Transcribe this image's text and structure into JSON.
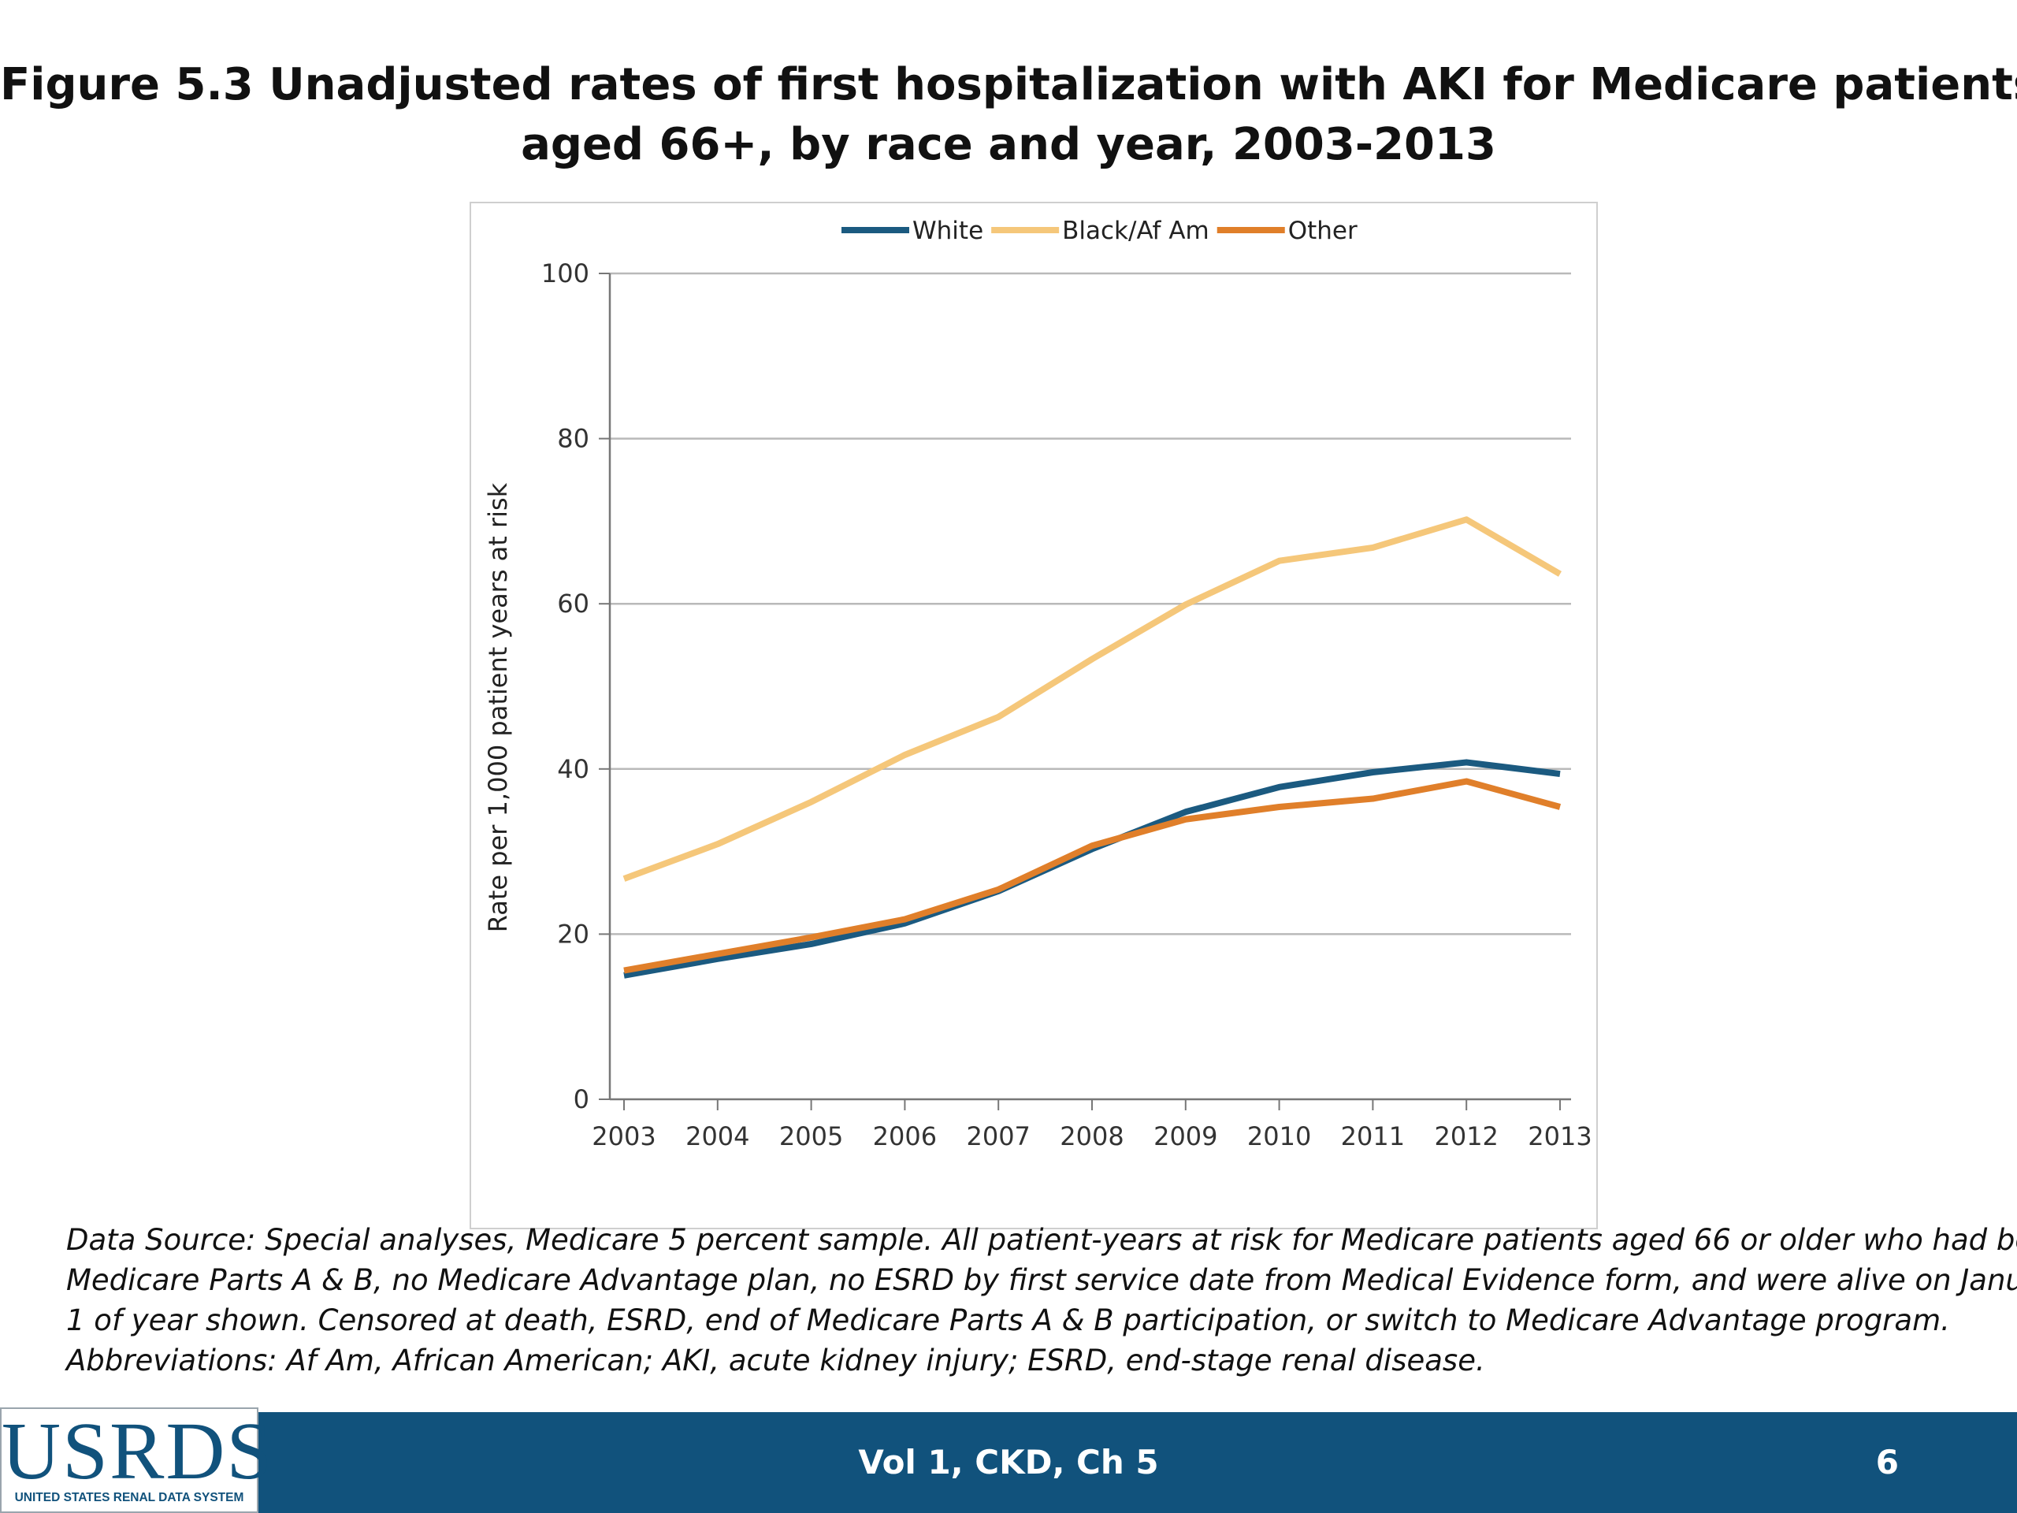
{
  "slide": {
    "title_line1": "Figure 5.3  Unadjusted rates of first hospitalization with AKI for Medicare patients",
    "title_line2": "aged 66+, by race and year, 2003-2013",
    "footnote_lines": [
      "Data Source: Special analyses, Medicare 5 percent sample. All patient-years at risk for Medicare patients aged 66 or older who had both",
      "Medicare Parts A & B, no Medicare Advantage plan, no ESRD by first service date from Medical Evidence form, and were alive on January",
      "1 of year shown. Censored at death, ESRD, end of Medicare Parts A & B participation, or switch to Medicare Advantage program.",
      "Abbreviations: Af Am, African American; AKI, acute kidney injury; ESRD, end-stage renal disease."
    ]
  },
  "footer": {
    "logo_text": "USRDS",
    "logo_subtext": "UNITED STATES RENAL DATA SYSTEM",
    "center_text": "Vol 1, CKD, Ch 5",
    "page_number": "6",
    "bar_color": "#11527c"
  },
  "chart_data": {
    "type": "line",
    "title": "",
    "xlabel": "",
    "ylabel": "Rate per 1,000 patient years at risk",
    "x": [
      2003,
      2004,
      2005,
      2006,
      2007,
      2008,
      2009,
      2010,
      2011,
      2012,
      2013
    ],
    "ylim": [
      0,
      100
    ],
    "yticks": [
      0,
      20,
      40,
      60,
      80,
      100
    ],
    "grid": true,
    "legend_position": "top-center",
    "series": [
      {
        "name": "White",
        "color": "#1b5a80",
        "values": [
          15.0,
          17.0,
          18.8,
          21.3,
          25.2,
          30.3,
          34.8,
          37.8,
          39.6,
          40.8,
          39.4
        ]
      },
      {
        "name": "Black/Af Am",
        "color": "#f5c77a",
        "values": [
          26.7,
          30.9,
          36.0,
          41.7,
          46.3,
          53.3,
          59.9,
          65.2,
          66.8,
          70.2,
          63.6
        ]
      },
      {
        "name": "Other",
        "color": "#e07f2a",
        "values": [
          15.6,
          17.6,
          19.6,
          21.8,
          25.4,
          30.7,
          33.9,
          35.4,
          36.4,
          38.5,
          35.4
        ]
      }
    ]
  }
}
